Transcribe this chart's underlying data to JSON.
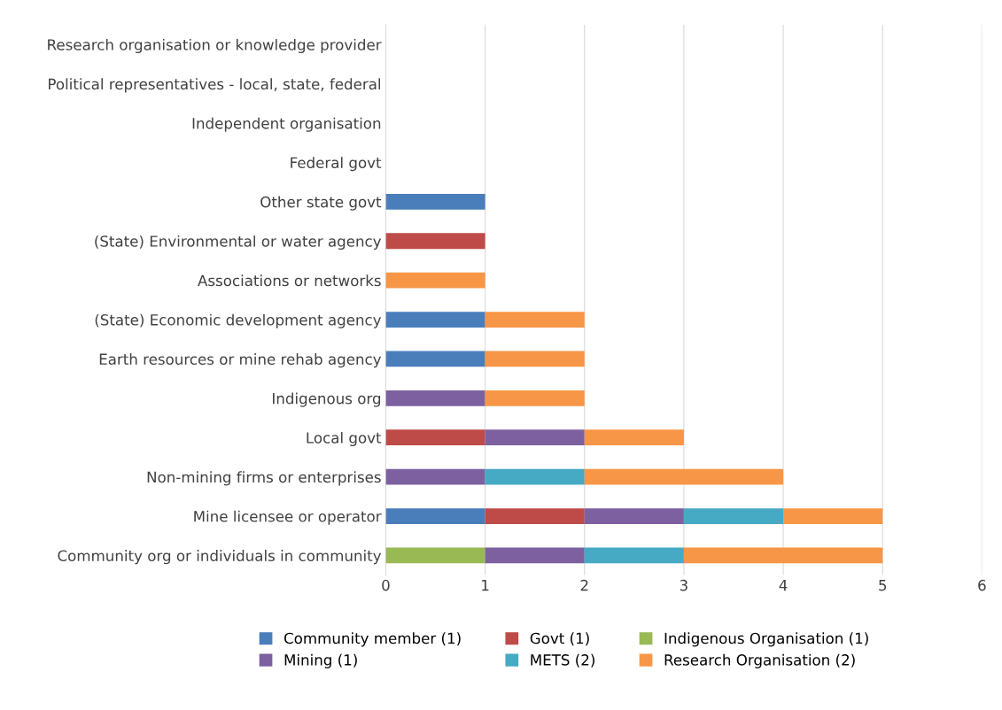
{
  "chart_data": {
    "type": "bar",
    "orientation": "horizontal",
    "stacked": true,
    "categories": [
      "Research organisation or knowledge provider",
      "Political representatives - local, state, federal",
      "Independent organisation",
      "Federal govt",
      "Other state govt",
      "(State) Environmental or water agency",
      "Associations or networks",
      "(State) Economic development agency",
      "Earth resources or mine rehab agency",
      "Indigenous org",
      "Local govt",
      "Non-mining firms or enterprises",
      "Mine licensee or operator",
      "Community org or individuals in community"
    ],
    "series": [
      {
        "name": "Community member (1)",
        "color": "#4a7ebb",
        "values": [
          0,
          0,
          0,
          0,
          1,
          0,
          0,
          1,
          1,
          0,
          0,
          0,
          1,
          0
        ]
      },
      {
        "name": "Govt (1)",
        "color": "#be4b48",
        "values": [
          0,
          0,
          0,
          0,
          0,
          1,
          0,
          0,
          0,
          0,
          1,
          0,
          1,
          0
        ]
      },
      {
        "name": "Indigenous Organisation (1)",
        "color": "#98b954",
        "values": [
          0,
          0,
          0,
          0,
          0,
          0,
          0,
          0,
          0,
          0,
          0,
          0,
          0,
          1
        ]
      },
      {
        "name": "Mining (1)",
        "color": "#7d60a0",
        "values": [
          0,
          0,
          0,
          0,
          0,
          0,
          0,
          0,
          0,
          1,
          1,
          1,
          1,
          1
        ]
      },
      {
        "name": "METS (2)",
        "color": "#46aac5",
        "values": [
          0,
          0,
          0,
          0,
          0,
          0,
          0,
          0,
          0,
          0,
          0,
          1,
          1,
          1
        ]
      },
      {
        "name": "Research Organisation (2)",
        "color": "#f79646",
        "values": [
          0,
          0,
          0,
          0,
          0,
          0,
          1,
          1,
          1,
          1,
          1,
          2,
          1,
          2
        ]
      }
    ],
    "xlim": [
      0,
      6
    ],
    "xticks": [
      0,
      1,
      2,
      3,
      4,
      5,
      6
    ],
    "grid": "x",
    "legend": "bottom"
  }
}
